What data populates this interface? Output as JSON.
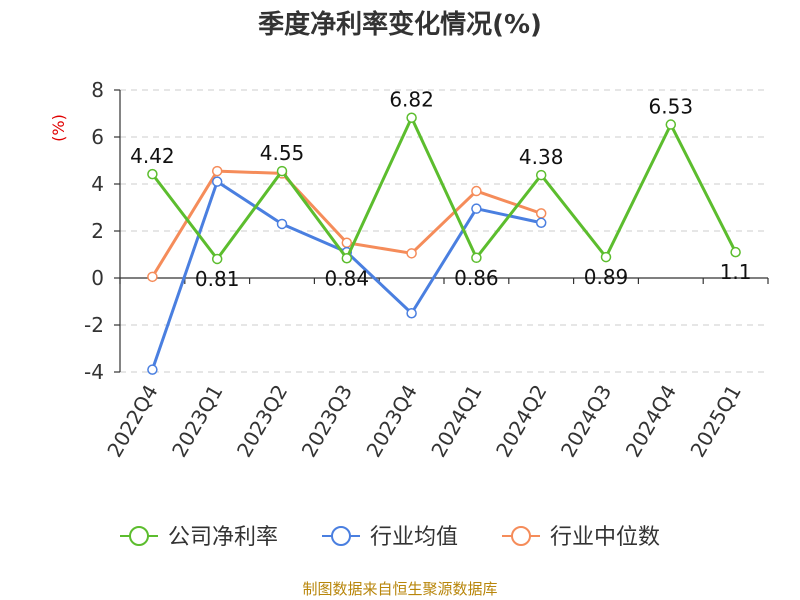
{
  "chart_data": {
    "type": "line",
    "title": "季度净利率变化情况(%)",
    "ylabel": "(%)",
    "xlabel": "",
    "ylim": [
      -4,
      8
    ],
    "yticks": [
      -4,
      -2,
      0,
      2,
      4,
      6,
      8
    ],
    "categories": [
      "2022Q4",
      "2023Q1",
      "2023Q2",
      "2023Q3",
      "2023Q4",
      "2024Q1",
      "2024Q2",
      "2024Q3",
      "2024Q4",
      "2025Q1"
    ],
    "grid": true,
    "legend_position": "bottom",
    "series": [
      {
        "name": "公司净利率",
        "color": "#5cbd2e",
        "labeled": true,
        "values": [
          4.42,
          0.81,
          4.55,
          0.84,
          6.82,
          0.86,
          4.38,
          0.89,
          6.53,
          1.1
        ],
        "labels": [
          "4.42",
          "0.81",
          "4.55",
          "0.84",
          "6.82",
          "0.86",
          "4.38",
          "0.89",
          "6.53",
          "1.1"
        ]
      },
      {
        "name": "行业均值",
        "color": "#4a7fe0",
        "labeled": false,
        "values": [
          -3.9,
          4.1,
          2.3,
          1.1,
          -1.5,
          2.95,
          2.35,
          null,
          null,
          null
        ]
      },
      {
        "name": "行业中位数",
        "color": "#f58c5a",
        "labeled": false,
        "values": [
          0.05,
          4.55,
          4.45,
          1.5,
          1.05,
          3.7,
          2.75,
          null,
          null,
          null
        ]
      }
    ]
  },
  "footer": {
    "source": "制图数据来自恒生聚源数据库"
  }
}
